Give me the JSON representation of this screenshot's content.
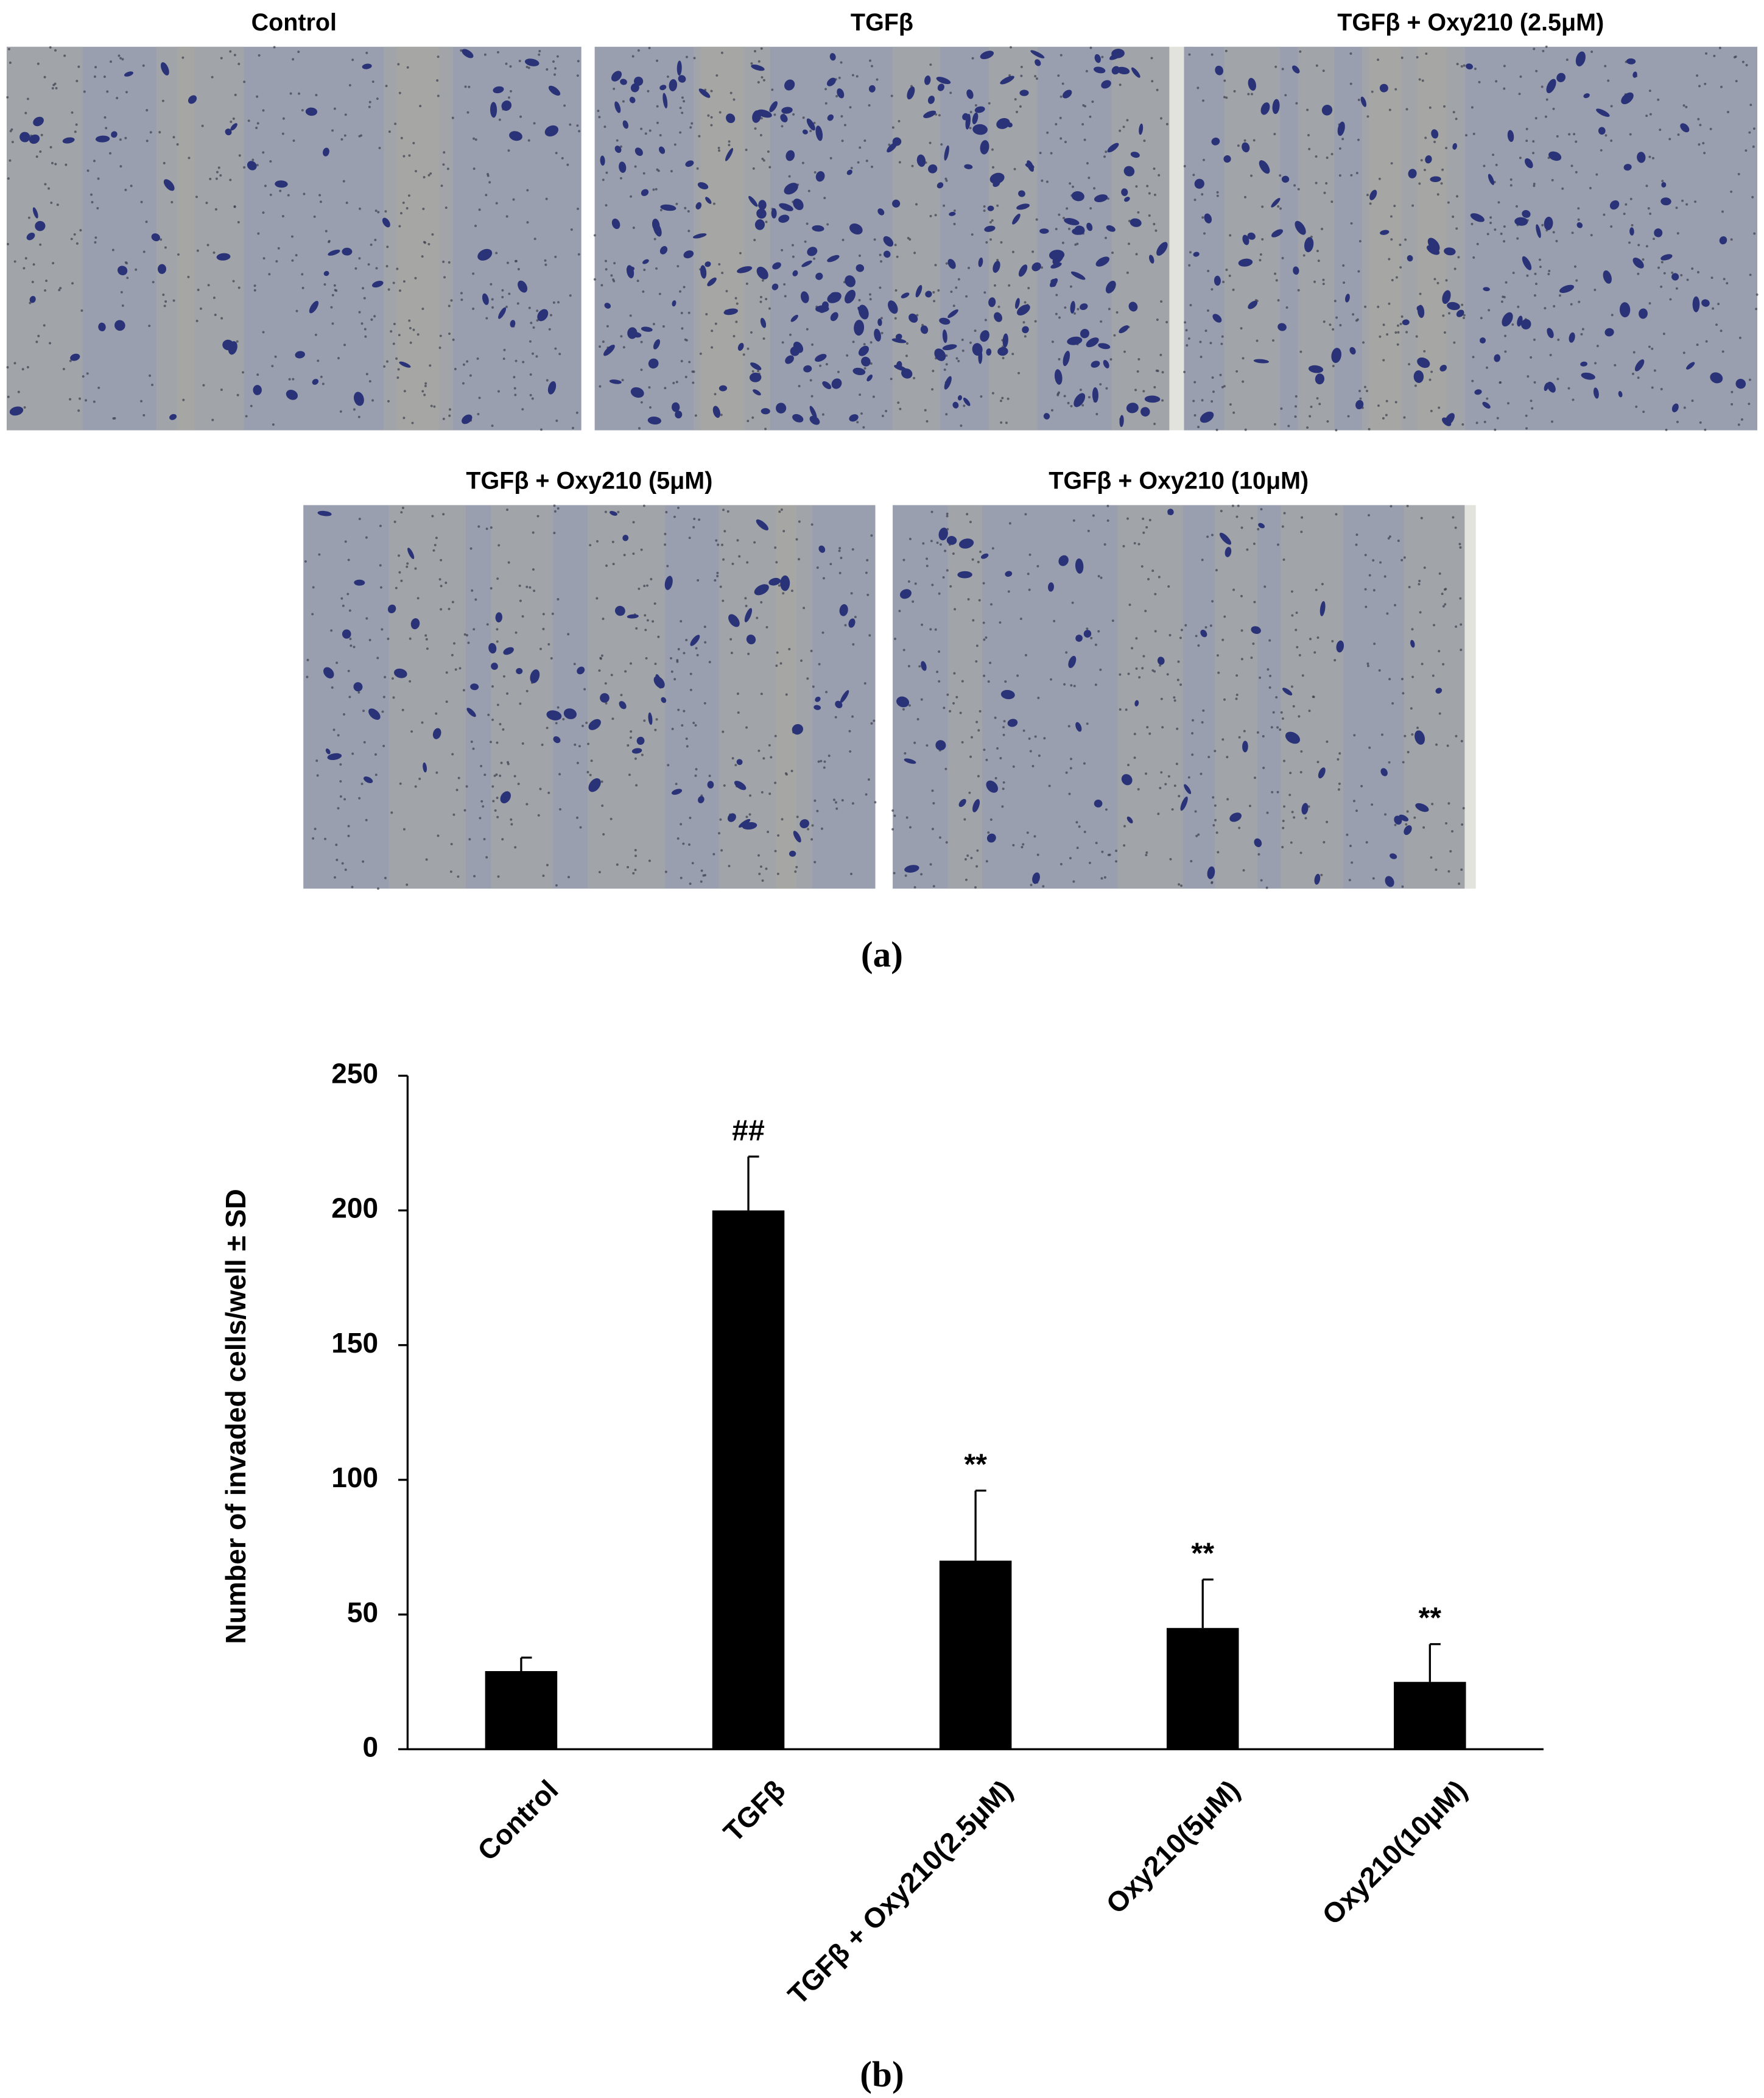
{
  "figure": {
    "images": [
      {
        "title": "Control"
      },
      {
        "title": "TGFβ"
      },
      {
        "title": "TGFβ + Oxy210 (2.5μM)"
      },
      {
        "title": "TGFβ + Oxy210 (5μM)"
      },
      {
        "title": "TGFβ + Oxy210 (10μM)"
      }
    ],
    "panel_a": "(a)",
    "panel_b": "(b)"
  },
  "chart_data": {
    "type": "bar",
    "y_label": "Number of invaded cells/well ± SD",
    "categories": [
      "Control",
      "TGFβ",
      "TGFβ + Oxy210(2.5μM)",
      "Oxy210(5μM)",
      "Oxy210(10μM)"
    ],
    "values": [
      29,
      200,
      70,
      45,
      25
    ],
    "errors": [
      5,
      20,
      26,
      18,
      14
    ],
    "annotations": [
      null,
      "##",
      "**",
      "**",
      "**"
    ],
    "color": "#000000",
    "ylim": [
      0,
      250
    ],
    "yticks": [
      0,
      50,
      100,
      150,
      200,
      250
    ],
    "grid": false
  }
}
